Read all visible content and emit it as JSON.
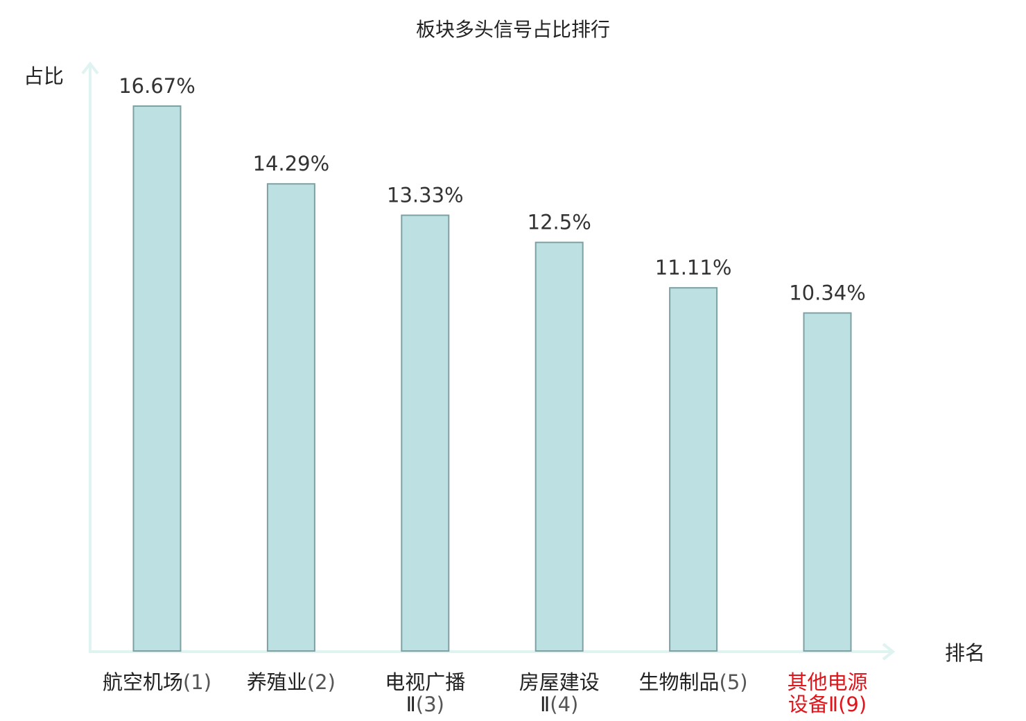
{
  "chart_data": {
    "type": "bar",
    "title": "板块多头信号占比排行",
    "ylabel": "占比",
    "xlabel": "排名",
    "ylim": [
      0,
      18
    ],
    "grid": false,
    "categories": [
      {
        "name": "航空机场",
        "name_line2": "",
        "rank": "(1)",
        "highlight": false
      },
      {
        "name": "养殖业",
        "name_line2": "",
        "rank": "(2)",
        "highlight": false
      },
      {
        "name": "电视广播",
        "name_line2": "Ⅱ",
        "rank": "(3)",
        "highlight": false
      },
      {
        "name": "房屋建设",
        "name_line2": "Ⅱ",
        "rank": "(4)",
        "highlight": false
      },
      {
        "name": "生物制品",
        "name_line2": "",
        "rank": "(5)",
        "highlight": false
      },
      {
        "name": "其他电源",
        "name_line2": "设备Ⅱ",
        "rank": "(9)",
        "highlight": true
      }
    ],
    "values": [
      16.67,
      14.29,
      13.33,
      12.5,
      11.11,
      10.34
    ],
    "value_labels": [
      "16.67%",
      "14.29%",
      "13.33%",
      "12.5%",
      "11.11%",
      "10.34%"
    ]
  },
  "colors": {
    "bar_fill": "#bde1e3",
    "bar_stroke": "#7fa0a2",
    "axis": "#dff3f1",
    "highlight": "#e0151b"
  }
}
